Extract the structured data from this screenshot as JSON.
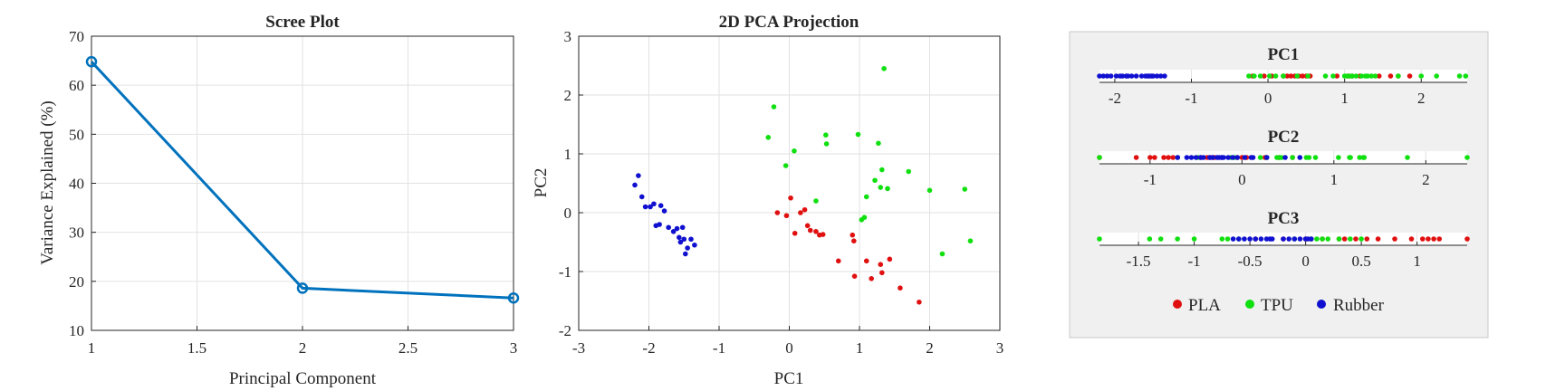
{
  "chart_data": [
    {
      "type": "line",
      "title": "Scree Plot",
      "xlabel": "Principal Component",
      "ylabel": "Variance Explained (%)",
      "xlim": [
        1,
        3
      ],
      "ylim": [
        10,
        70
      ],
      "xticks": [
        "1",
        "1.5",
        "2",
        "2.5",
        "3"
      ],
      "yticks": [
        "10",
        "20",
        "30",
        "40",
        "50",
        "60",
        "70"
      ],
      "grid": true,
      "color": "#0072BD",
      "x": [
        1,
        2,
        3
      ],
      "y": [
        64.8,
        18.6,
        16.6
      ]
    },
    {
      "type": "scatter",
      "title": "2D PCA Projection",
      "xlabel": "PC1",
      "ylabel": "PC2",
      "xlim": [
        -3,
        3
      ],
      "ylim": [
        -2,
        3
      ],
      "xticks": [
        "-3",
        "-2",
        "-1",
        "0",
        "1",
        "2",
        "3"
      ],
      "yticks": [
        "-2",
        "-1",
        "0",
        "1",
        "2",
        "3"
      ],
      "grid": true,
      "series": [
        {
          "name": "PLA",
          "color": "#e01010",
          "points": [
            [
              -0.17,
              0.0
            ],
            [
              -0.04,
              -0.05
            ],
            [
              0.02,
              0.25
            ],
            [
              0.08,
              -0.35
            ],
            [
              0.16,
              0.0
            ],
            [
              0.22,
              0.05
            ],
            [
              0.26,
              -0.22
            ],
            [
              0.3,
              -0.3
            ],
            [
              0.38,
              -0.32
            ],
            [
              0.43,
              -0.38
            ],
            [
              0.48,
              -0.37
            ],
            [
              0.7,
              -0.82
            ],
            [
              0.9,
              -0.38
            ],
            [
              0.92,
              -0.48
            ],
            [
              0.93,
              -1.08
            ],
            [
              1.1,
              -0.82
            ],
            [
              1.17,
              -1.12
            ],
            [
              1.3,
              -0.88
            ],
            [
              1.32,
              -1.02
            ],
            [
              1.43,
              -0.79
            ],
            [
              1.58,
              -1.28
            ],
            [
              1.85,
              -1.52
            ]
          ]
        },
        {
          "name": "TPU",
          "color": "#10e010",
          "points": [
            [
              -0.3,
              1.28
            ],
            [
              -0.22,
              1.8
            ],
            [
              -0.05,
              0.8
            ],
            [
              0.07,
              1.05
            ],
            [
              0.38,
              0.2
            ],
            [
              0.52,
              1.32
            ],
            [
              0.53,
              1.17
            ],
            [
              0.98,
              1.33
            ],
            [
              1.03,
              -0.12
            ],
            [
              1.07,
              -0.08
            ],
            [
              1.1,
              0.27
            ],
            [
              1.22,
              0.55
            ],
            [
              1.27,
              1.18
            ],
            [
              1.3,
              0.43
            ],
            [
              1.32,
              0.73
            ],
            [
              1.35,
              2.45
            ],
            [
              1.4,
              0.41
            ],
            [
              1.7,
              0.7
            ],
            [
              2.0,
              0.38
            ],
            [
              2.18,
              -0.7
            ],
            [
              2.5,
              0.4
            ],
            [
              2.58,
              -0.48
            ]
          ]
        },
        {
          "name": "Rubber",
          "color": "#1010d0",
          "points": [
            [
              -2.2,
              0.47
            ],
            [
              -2.15,
              0.63
            ],
            [
              -2.1,
              0.27
            ],
            [
              -2.05,
              0.1
            ],
            [
              -1.98,
              0.1
            ],
            [
              -1.93,
              0.15
            ],
            [
              -1.9,
              -0.22
            ],
            [
              -1.85,
              -0.2
            ],
            [
              -1.83,
              0.12
            ],
            [
              -1.78,
              0.03
            ],
            [
              -1.72,
              -0.25
            ],
            [
              -1.65,
              -0.32
            ],
            [
              -1.6,
              -0.27
            ],
            [
              -1.57,
              -0.42
            ],
            [
              -1.55,
              -0.5
            ],
            [
              -1.52,
              -0.25
            ],
            [
              -1.5,
              -0.45
            ],
            [
              -1.45,
              -0.6
            ],
            [
              -1.48,
              -0.7
            ],
            [
              -1.4,
              -0.45
            ],
            [
              -1.35,
              -0.55
            ]
          ]
        }
      ]
    },
    {
      "type": "scatter",
      "title": "PC1",
      "xlim": [
        -2.2,
        2.6
      ],
      "xticks": [
        "-2",
        "-1",
        "0",
        "1",
        "2"
      ],
      "series": [
        {
          "name": "PLA",
          "color": "#e01010",
          "values": [
            -0.2,
            -0.05,
            0.05,
            0.2,
            0.25,
            0.3,
            0.35,
            0.4,
            0.45,
            0.5,
            0.55,
            0.9,
            1.05,
            1.1,
            1.2,
            1.45,
            1.6,
            1.7,
            1.85
          ]
        },
        {
          "name": "TPU",
          "color": "#10e010",
          "values": [
            -0.25,
            -0.18,
            -0.1,
            0.02,
            0.1,
            0.2,
            0.38,
            0.52,
            0.75,
            0.85,
            1.0,
            1.03,
            1.07,
            1.1,
            1.15,
            1.22,
            1.27,
            1.3,
            1.35,
            1.4,
            1.7,
            2.0,
            2.2,
            2.5,
            2.58
          ]
        },
        {
          "name": "Rubber",
          "color": "#1010d0",
          "values": [
            -2.2,
            -2.15,
            -2.1,
            -2.05,
            -1.98,
            -1.93,
            -1.9,
            -1.85,
            -1.83,
            -1.78,
            -1.72,
            -1.65,
            -1.6,
            -1.57,
            -1.55,
            -1.52,
            -1.5,
            -1.45,
            -1.4,
            -1.35
          ]
        }
      ]
    },
    {
      "type": "scatter",
      "title": "PC2",
      "xlim": [
        -1.55,
        2.45
      ],
      "xticks": [
        "-1",
        "0",
        "1",
        "2"
      ],
      "series": [
        {
          "name": "PLA",
          "color": "#e01010",
          "values": [
            -1.55,
            -1.15,
            -1.0,
            -0.95,
            -0.85,
            -0.8,
            -0.75,
            -0.45,
            -0.38,
            -0.35,
            -0.32,
            -0.3,
            -0.22,
            -0.05,
            0.0,
            0.05,
            0.25,
            0.4,
            0.55
          ]
        },
        {
          "name": "TPU",
          "color": "#10e010",
          "values": [
            -1.55,
            -0.7,
            -0.48,
            -0.12,
            -0.08,
            0.2,
            0.27,
            0.38,
            0.41,
            0.43,
            0.55,
            0.7,
            0.73,
            0.8,
            1.05,
            1.17,
            1.18,
            1.28,
            1.32,
            1.33,
            1.8,
            2.45
          ]
        },
        {
          "name": "Rubber",
          "color": "#1010d0",
          "values": [
            -0.7,
            -0.6,
            -0.55,
            -0.5,
            -0.45,
            -0.42,
            -0.35,
            -0.32,
            -0.27,
            -0.25,
            -0.22,
            -0.2,
            -0.15,
            -0.1,
            -0.05,
            0.03,
            0.1,
            0.12,
            0.27,
            0.47,
            0.63
          ]
        }
      ]
    },
    {
      "type": "scatter",
      "title": "PC3",
      "xlim": [
        -1.85,
        1.45
      ],
      "xticks": [
        "-1.5",
        "-1",
        "-0.5",
        "0",
        "0.5",
        "1"
      ],
      "series": [
        {
          "name": "PLA",
          "color": "#e01010",
          "values": [
            -0.45,
            -0.2,
            0.0,
            0.05,
            0.15,
            0.3,
            0.35,
            0.45,
            0.55,
            0.65,
            0.8,
            0.95,
            1.05,
            1.1,
            1.15,
            1.2,
            1.45
          ]
        },
        {
          "name": "TPU",
          "color": "#10e010",
          "values": [
            -1.85,
            -1.4,
            -1.3,
            -1.15,
            -1.0,
            -0.75,
            -0.7,
            -0.6,
            -0.1,
            0.05,
            0.1,
            0.15,
            0.2,
            0.3,
            0.4,
            0.5
          ]
        },
        {
          "name": "Rubber",
          "color": "#1010d0",
          "values": [
            -0.65,
            -0.6,
            -0.55,
            -0.5,
            -0.45,
            -0.4,
            -0.35,
            -0.32,
            -0.3,
            -0.2,
            -0.15,
            -0.1,
            -0.05,
            0.0,
            0.02,
            0.05
          ]
        }
      ]
    }
  ],
  "legend": {
    "items": [
      {
        "label": "PLA",
        "color": "#e01010"
      },
      {
        "label": "TPU",
        "color": "#10e010"
      },
      {
        "label": "Rubber",
        "color": "#1010d0"
      }
    ]
  }
}
